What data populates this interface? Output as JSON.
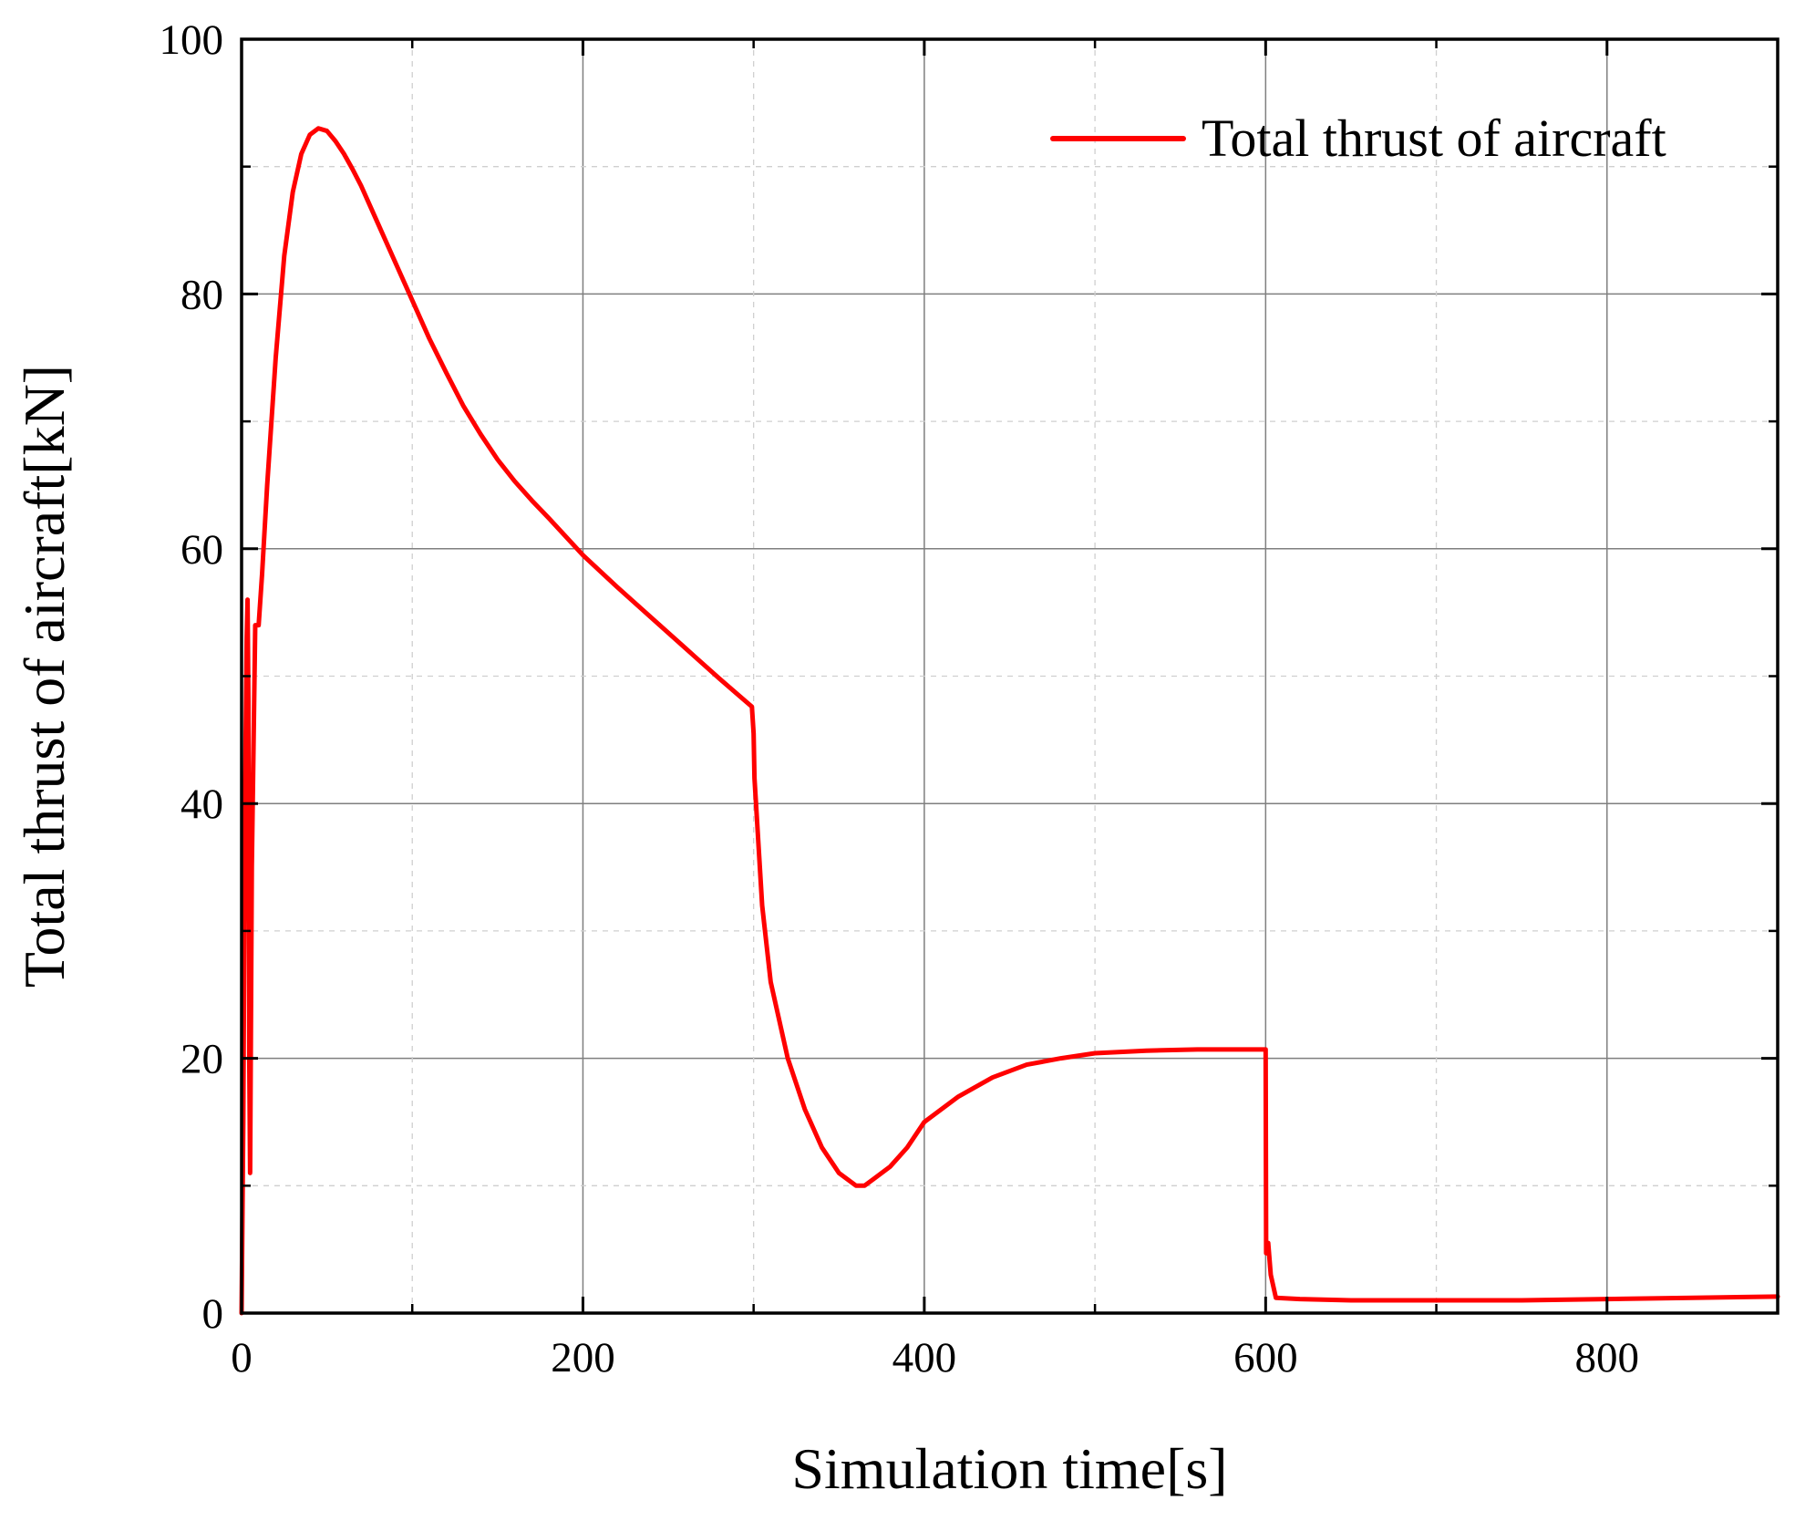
{
  "chart_data": {
    "type": "line",
    "title": "",
    "xlabel": "Simulation time[s]",
    "ylabel": "Total thrust of aircraft[kN]",
    "xlim": [
      0,
      900
    ],
    "ylim": [
      0,
      100
    ],
    "xticks": [
      0,
      200,
      400,
      600,
      800
    ],
    "xtick_labels": [
      "0",
      "200",
      "400",
      "600",
      "800"
    ],
    "yticks": [
      0,
      20,
      40,
      60,
      80,
      100
    ],
    "ytick_labels": [
      "0",
      "20",
      "40",
      "60",
      "80",
      "100"
    ],
    "x_minor_ticks": [
      100,
      300,
      500,
      700
    ],
    "y_minor_ticks": [
      10,
      30,
      50,
      70,
      90
    ],
    "grid": true,
    "legend_position": "top-right",
    "series": [
      {
        "name": "Total thrust of aircraft",
        "color": "#ff0000",
        "x": [
          0,
          1,
          2,
          3,
          3.5,
          4,
          4.5,
          5,
          6,
          8,
          10,
          12,
          15,
          20,
          25,
          30,
          35,
          40,
          45,
          50,
          55,
          60,
          65,
          70,
          80,
          90,
          100,
          110,
          120,
          130,
          140,
          150,
          160,
          170,
          180,
          200,
          220,
          240,
          260,
          280,
          299,
          300,
          300.5,
          305,
          310,
          320,
          330,
          340,
          350,
          360,
          365,
          370,
          380,
          390,
          400,
          420,
          440,
          460,
          480,
          500,
          530,
          560,
          590,
          600,
          600.3,
          601,
          601.5,
          603,
          606,
          620,
          650,
          700,
          750,
          800,
          850,
          900
        ],
        "y": [
          0,
          15,
          40,
          53,
          56,
          48,
          20,
          11,
          35,
          54,
          54,
          58,
          65,
          75,
          83,
          88,
          91,
          92.5,
          93,
          92.8,
          92,
          91,
          89.8,
          88.5,
          85.5,
          82.5,
          79.5,
          76.5,
          73.8,
          71.2,
          69,
          67,
          65.3,
          63.8,
          62.4,
          59.5,
          57,
          54.6,
          52.2,
          49.8,
          47.6,
          45.5,
          42,
          32,
          26,
          20,
          16,
          13,
          11,
          10,
          10,
          10.5,
          11.5,
          13,
          15,
          17,
          18.5,
          19.5,
          20,
          20.4,
          20.6,
          20.7,
          20.7,
          20.7,
          4.7,
          5.0,
          5.5,
          3,
          1.2,
          1.1,
          1.0,
          1.0,
          1.0,
          1.1,
          1.2,
          1.3
        ]
      }
    ]
  }
}
